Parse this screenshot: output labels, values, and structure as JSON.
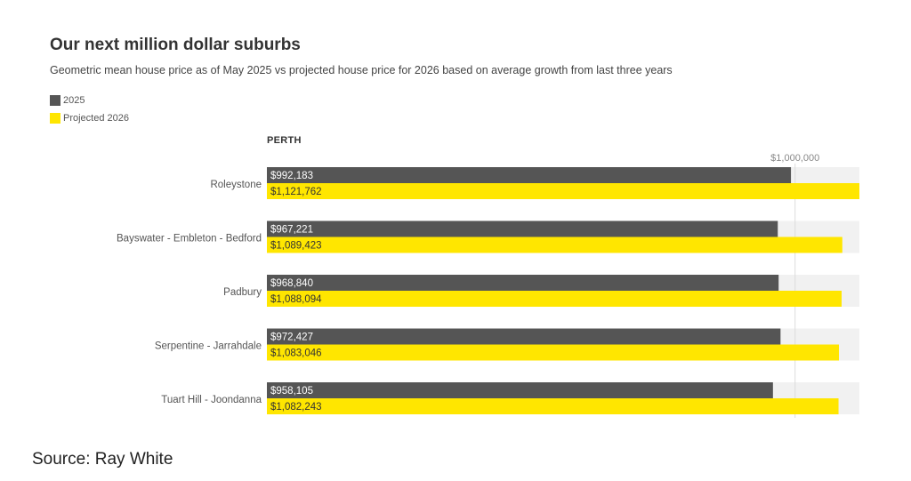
{
  "chart_data": {
    "type": "bar",
    "orientation": "horizontal",
    "title": "Our next million dollar suburbs",
    "subtitle": "Geometric mean house price as of May 2025 vs projected house price for 2026 based on average growth from last three years",
    "group_label": "PERTH",
    "categories": [
      "Roleystone",
      "Bayswater - Embleton - Bedford",
      "Padbury",
      "Serpentine - Jarrahdale",
      "Tuart Hill - Joondanna"
    ],
    "series": [
      {
        "name": "2025",
        "color": "#555555",
        "values": [
          992183,
          967221,
          968840,
          972427,
          958105
        ],
        "labels": [
          "$992,183",
          "$967,221",
          "$968,840",
          "$972,427",
          "$958,105"
        ]
      },
      {
        "name": "Projected 2026",
        "color": "#ffe600",
        "values": [
          1121762,
          1089423,
          1088094,
          1083046,
          1082243
        ],
        "labels": [
          "$1,121,762",
          "$1,089,423",
          "$1,088,094",
          "$1,083,046",
          "$1,082,243"
        ]
      }
    ],
    "reference_line": {
      "value": 1000000,
      "label": "$1,000,000"
    },
    "xlim": [
      0,
      1121762
    ],
    "grid": false,
    "legend_position": "top-left"
  },
  "colors": {
    "track": "#f1f1f1",
    "bar_2025": "#555555",
    "bar_2026": "#ffe600"
  },
  "source": "Source: Ray White"
}
